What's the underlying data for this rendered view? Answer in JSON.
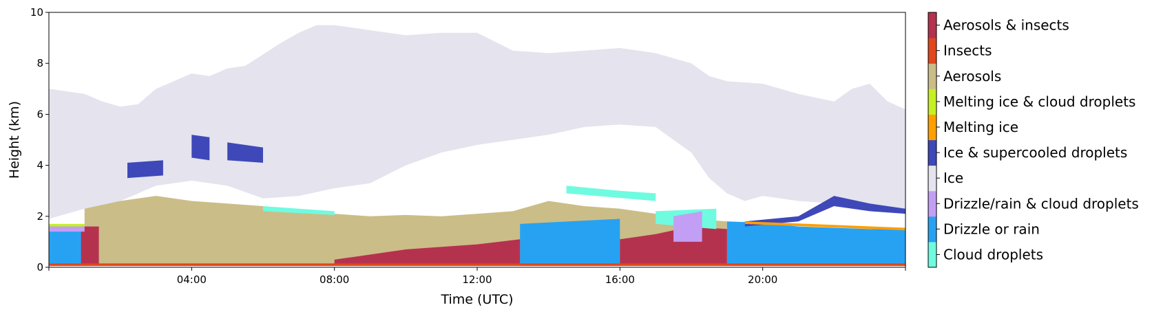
{
  "chart_data": {
    "type": "heatmap",
    "title": "",
    "xlabel": "Time (UTC)",
    "ylabel": "Height (km)",
    "xlim": [
      0,
      24
    ],
    "ylim": [
      0,
      10
    ],
    "x_ticks": [
      {
        "value": 4,
        "label": "04:00"
      },
      {
        "value": 8,
        "label": "08:00"
      },
      {
        "value": 12,
        "label": "12:00"
      },
      {
        "value": 16,
        "label": "16:00"
      },
      {
        "value": 20,
        "label": "20:00"
      }
    ],
    "y_ticks": [
      0,
      2,
      4,
      6,
      8,
      10
    ],
    "legend_placement": "colorbar-right",
    "classes": [
      {
        "name": "Cloud droplets",
        "color": "#6ffbe0"
      },
      {
        "name": "Drizzle or rain",
        "color": "#27a2f2"
      },
      {
        "name": "Drizzle/rain & cloud droplets",
        "color": "#c39ef5"
      },
      {
        "name": "Ice",
        "color": "#e4e3ee"
      },
      {
        "name": "Ice & supercooled droplets",
        "color": "#3f48b8"
      },
      {
        "name": "Melting ice",
        "color": "#ff9f00"
      },
      {
        "name": "Melting ice & cloud droplets",
        "color": "#c6f023"
      },
      {
        "name": "Aerosols",
        "color": "#cbbd87"
      },
      {
        "name": "Insects",
        "color": "#e1471a"
      },
      {
        "name": "Aerosols & insects",
        "color": "#b5324f"
      }
    ],
    "regions": [
      {
        "class": "Ice",
        "points": [
          [
            0,
            7
          ],
          [
            0.5,
            6.9
          ],
          [
            1,
            6.8
          ],
          [
            1.5,
            6.5
          ],
          [
            2,
            6.3
          ],
          [
            2.5,
            6.4
          ],
          [
            3,
            7
          ],
          [
            3.5,
            7.3
          ],
          [
            4,
            7.6
          ],
          [
            4.5,
            7.5
          ],
          [
            5,
            7.8
          ],
          [
            5.5,
            7.9
          ],
          [
            6.5,
            8.8
          ],
          [
            7,
            9.2
          ],
          [
            7.5,
            9.5
          ],
          [
            8,
            9.5
          ],
          [
            8.5,
            9.4
          ],
          [
            9,
            9.3
          ],
          [
            10,
            9.1
          ],
          [
            11,
            9.2
          ],
          [
            12,
            9.2
          ],
          [
            13,
            8.5
          ],
          [
            14,
            8.4
          ],
          [
            15,
            8.5
          ],
          [
            16,
            8.6
          ],
          [
            17,
            8.4
          ],
          [
            18,
            8
          ],
          [
            18.5,
            7.5
          ],
          [
            19,
            7.3
          ],
          [
            20,
            7.2
          ],
          [
            20.5,
            7
          ],
          [
            21,
            6.8
          ],
          [
            22,
            6.5
          ],
          [
            22.5,
            7
          ],
          [
            23,
            7.2
          ],
          [
            23.5,
            6.5
          ],
          [
            24,
            6.2
          ],
          [
            24,
            2.3
          ],
          [
            23,
            2.5
          ],
          [
            22,
            2.5
          ],
          [
            21,
            2.6
          ],
          [
            20,
            2.8
          ],
          [
            19.5,
            2.6
          ],
          [
            19,
            2.9
          ],
          [
            18.5,
            3.5
          ],
          [
            18,
            4.5
          ],
          [
            17.5,
            5
          ],
          [
            17,
            5.5
          ],
          [
            16,
            5.6
          ],
          [
            15,
            5.5
          ],
          [
            14,
            5.2
          ],
          [
            13,
            5
          ],
          [
            12,
            4.8
          ],
          [
            11,
            4.5
          ],
          [
            10,
            4
          ],
          [
            9,
            3.3
          ],
          [
            8,
            3.1
          ],
          [
            7,
            2.8
          ],
          [
            6,
            2.7
          ],
          [
            5,
            3.2
          ],
          [
            4,
            3.4
          ],
          [
            3,
            3.2
          ],
          [
            2,
            2.6
          ],
          [
            1,
            2.3
          ],
          [
            0,
            1.9
          ]
        ]
      },
      {
        "class": "Aerosols",
        "points": [
          [
            1,
            2.3
          ],
          [
            2,
            2.6
          ],
          [
            3,
            2.8
          ],
          [
            4,
            2.6
          ],
          [
            5,
            2.5
          ],
          [
            6,
            2.4
          ],
          [
            7,
            2.2
          ],
          [
            8,
            2.1
          ],
          [
            9,
            2
          ],
          [
            10,
            2.05
          ],
          [
            11,
            2
          ],
          [
            12,
            2.1
          ],
          [
            13,
            2.2
          ],
          [
            14,
            2.6
          ],
          [
            15,
            2.4
          ],
          [
            16,
            2.3
          ],
          [
            17,
            2.1
          ],
          [
            18,
            1.9
          ],
          [
            19,
            1.8
          ],
          [
            19,
            0.1
          ],
          [
            1,
            0.1
          ]
        ]
      },
      {
        "class": "Drizzle or rain",
        "points": [
          [
            0,
            1.6
          ],
          [
            1,
            1.6
          ],
          [
            1,
            0.1
          ],
          [
            0,
            0.1
          ]
        ]
      },
      {
        "class": "Drizzle or rain",
        "points": [
          [
            13.2,
            1.7
          ],
          [
            16,
            1.9
          ],
          [
            16,
            0.1
          ],
          [
            13.2,
            0.1
          ]
        ]
      },
      {
        "class": "Drizzle or rain",
        "points": [
          [
            19,
            1.8
          ],
          [
            20,
            1.75
          ],
          [
            21,
            1.6
          ],
          [
            22,
            1.55
          ],
          [
            23,
            1.5
          ],
          [
            24,
            1.5
          ],
          [
            24,
            0.1
          ],
          [
            19,
            0.1
          ]
        ]
      },
      {
        "class": "Aerosols & insects",
        "points": [
          [
            0.9,
            1.6
          ],
          [
            1.4,
            1.6
          ],
          [
            1.4,
            0.1
          ],
          [
            0.9,
            0.1
          ]
        ]
      },
      {
        "class": "Aerosols & insects",
        "points": [
          [
            8,
            0.3
          ],
          [
            10,
            0.7
          ],
          [
            12,
            0.9
          ],
          [
            13.2,
            1.1
          ],
          [
            13.2,
            0.1
          ],
          [
            8,
            0.1
          ]
        ]
      },
      {
        "class": "Aerosols & insects",
        "points": [
          [
            16,
            1.1
          ],
          [
            17,
            1.3
          ],
          [
            18,
            1.6
          ],
          [
            19,
            1.5
          ],
          [
            19,
            0.1
          ],
          [
            16,
            0.1
          ]
        ]
      },
      {
        "class": "Cloud droplets",
        "points": [
          [
            6,
            2.4
          ],
          [
            7,
            2.3
          ],
          [
            8,
            2.2
          ],
          [
            8,
            2.05
          ],
          [
            6,
            2.2
          ]
        ]
      },
      {
        "class": "Cloud droplets",
        "points": [
          [
            14.5,
            3.2
          ],
          [
            16,
            3
          ],
          [
            17,
            2.9
          ],
          [
            17,
            2.6
          ],
          [
            14.5,
            2.9
          ]
        ]
      },
      {
        "class": "Cloud droplets",
        "points": [
          [
            17,
            2.2
          ],
          [
            18.7,
            2.3
          ],
          [
            18.7,
            1.5
          ],
          [
            17,
            1.7
          ]
        ]
      },
      {
        "class": "Ice & supercooled droplets",
        "points": [
          [
            19.5,
            1.8
          ],
          [
            21,
            2
          ],
          [
            22,
            2.8
          ],
          [
            23,
            2.5
          ],
          [
            24,
            2.3
          ],
          [
            24,
            2.1
          ],
          [
            23,
            2.2
          ],
          [
            22,
            2.4
          ],
          [
            21,
            1.8
          ],
          [
            19.5,
            1.6
          ]
        ]
      },
      {
        "class": "Ice & supercooled droplets",
        "points": [
          [
            2.2,
            4.1
          ],
          [
            3.2,
            4.2
          ],
          [
            3.2,
            3.6
          ],
          [
            2.2,
            3.5
          ]
        ]
      },
      {
        "class": "Ice & supercooled droplets",
        "points": [
          [
            4,
            5.2
          ],
          [
            4.5,
            5.1
          ],
          [
            4.5,
            4.2
          ],
          [
            4,
            4.3
          ]
        ]
      },
      {
        "class": "Ice & supercooled droplets",
        "points": [
          [
            5,
            4.9
          ],
          [
            6,
            4.7
          ],
          [
            6,
            4.1
          ],
          [
            5,
            4.2
          ]
        ]
      },
      {
        "class": "Melting ice",
        "points": [
          [
            19.5,
            1.8
          ],
          [
            24,
            1.55
          ],
          [
            24,
            1.45
          ],
          [
            19.5,
            1.7
          ]
        ]
      },
      {
        "class": "Melting ice & cloud droplets",
        "points": [
          [
            0,
            1.7
          ],
          [
            1,
            1.7
          ],
          [
            1,
            1.6
          ],
          [
            0,
            1.6
          ]
        ]
      },
      {
        "class": "Drizzle/rain & cloud droplets",
        "points": [
          [
            0,
            1.6
          ],
          [
            1,
            1.6
          ],
          [
            1,
            1.4
          ],
          [
            0,
            1.4
          ]
        ]
      },
      {
        "class": "Drizzle/rain & cloud droplets",
        "points": [
          [
            17.5,
            2
          ],
          [
            18.3,
            2.2
          ],
          [
            18.3,
            1
          ],
          [
            17.5,
            1
          ]
        ]
      },
      {
        "class": "Insects",
        "points": [
          [
            0,
            0.15
          ],
          [
            24,
            0.15
          ],
          [
            24,
            0.05
          ],
          [
            0,
            0.05
          ]
        ]
      }
    ]
  }
}
